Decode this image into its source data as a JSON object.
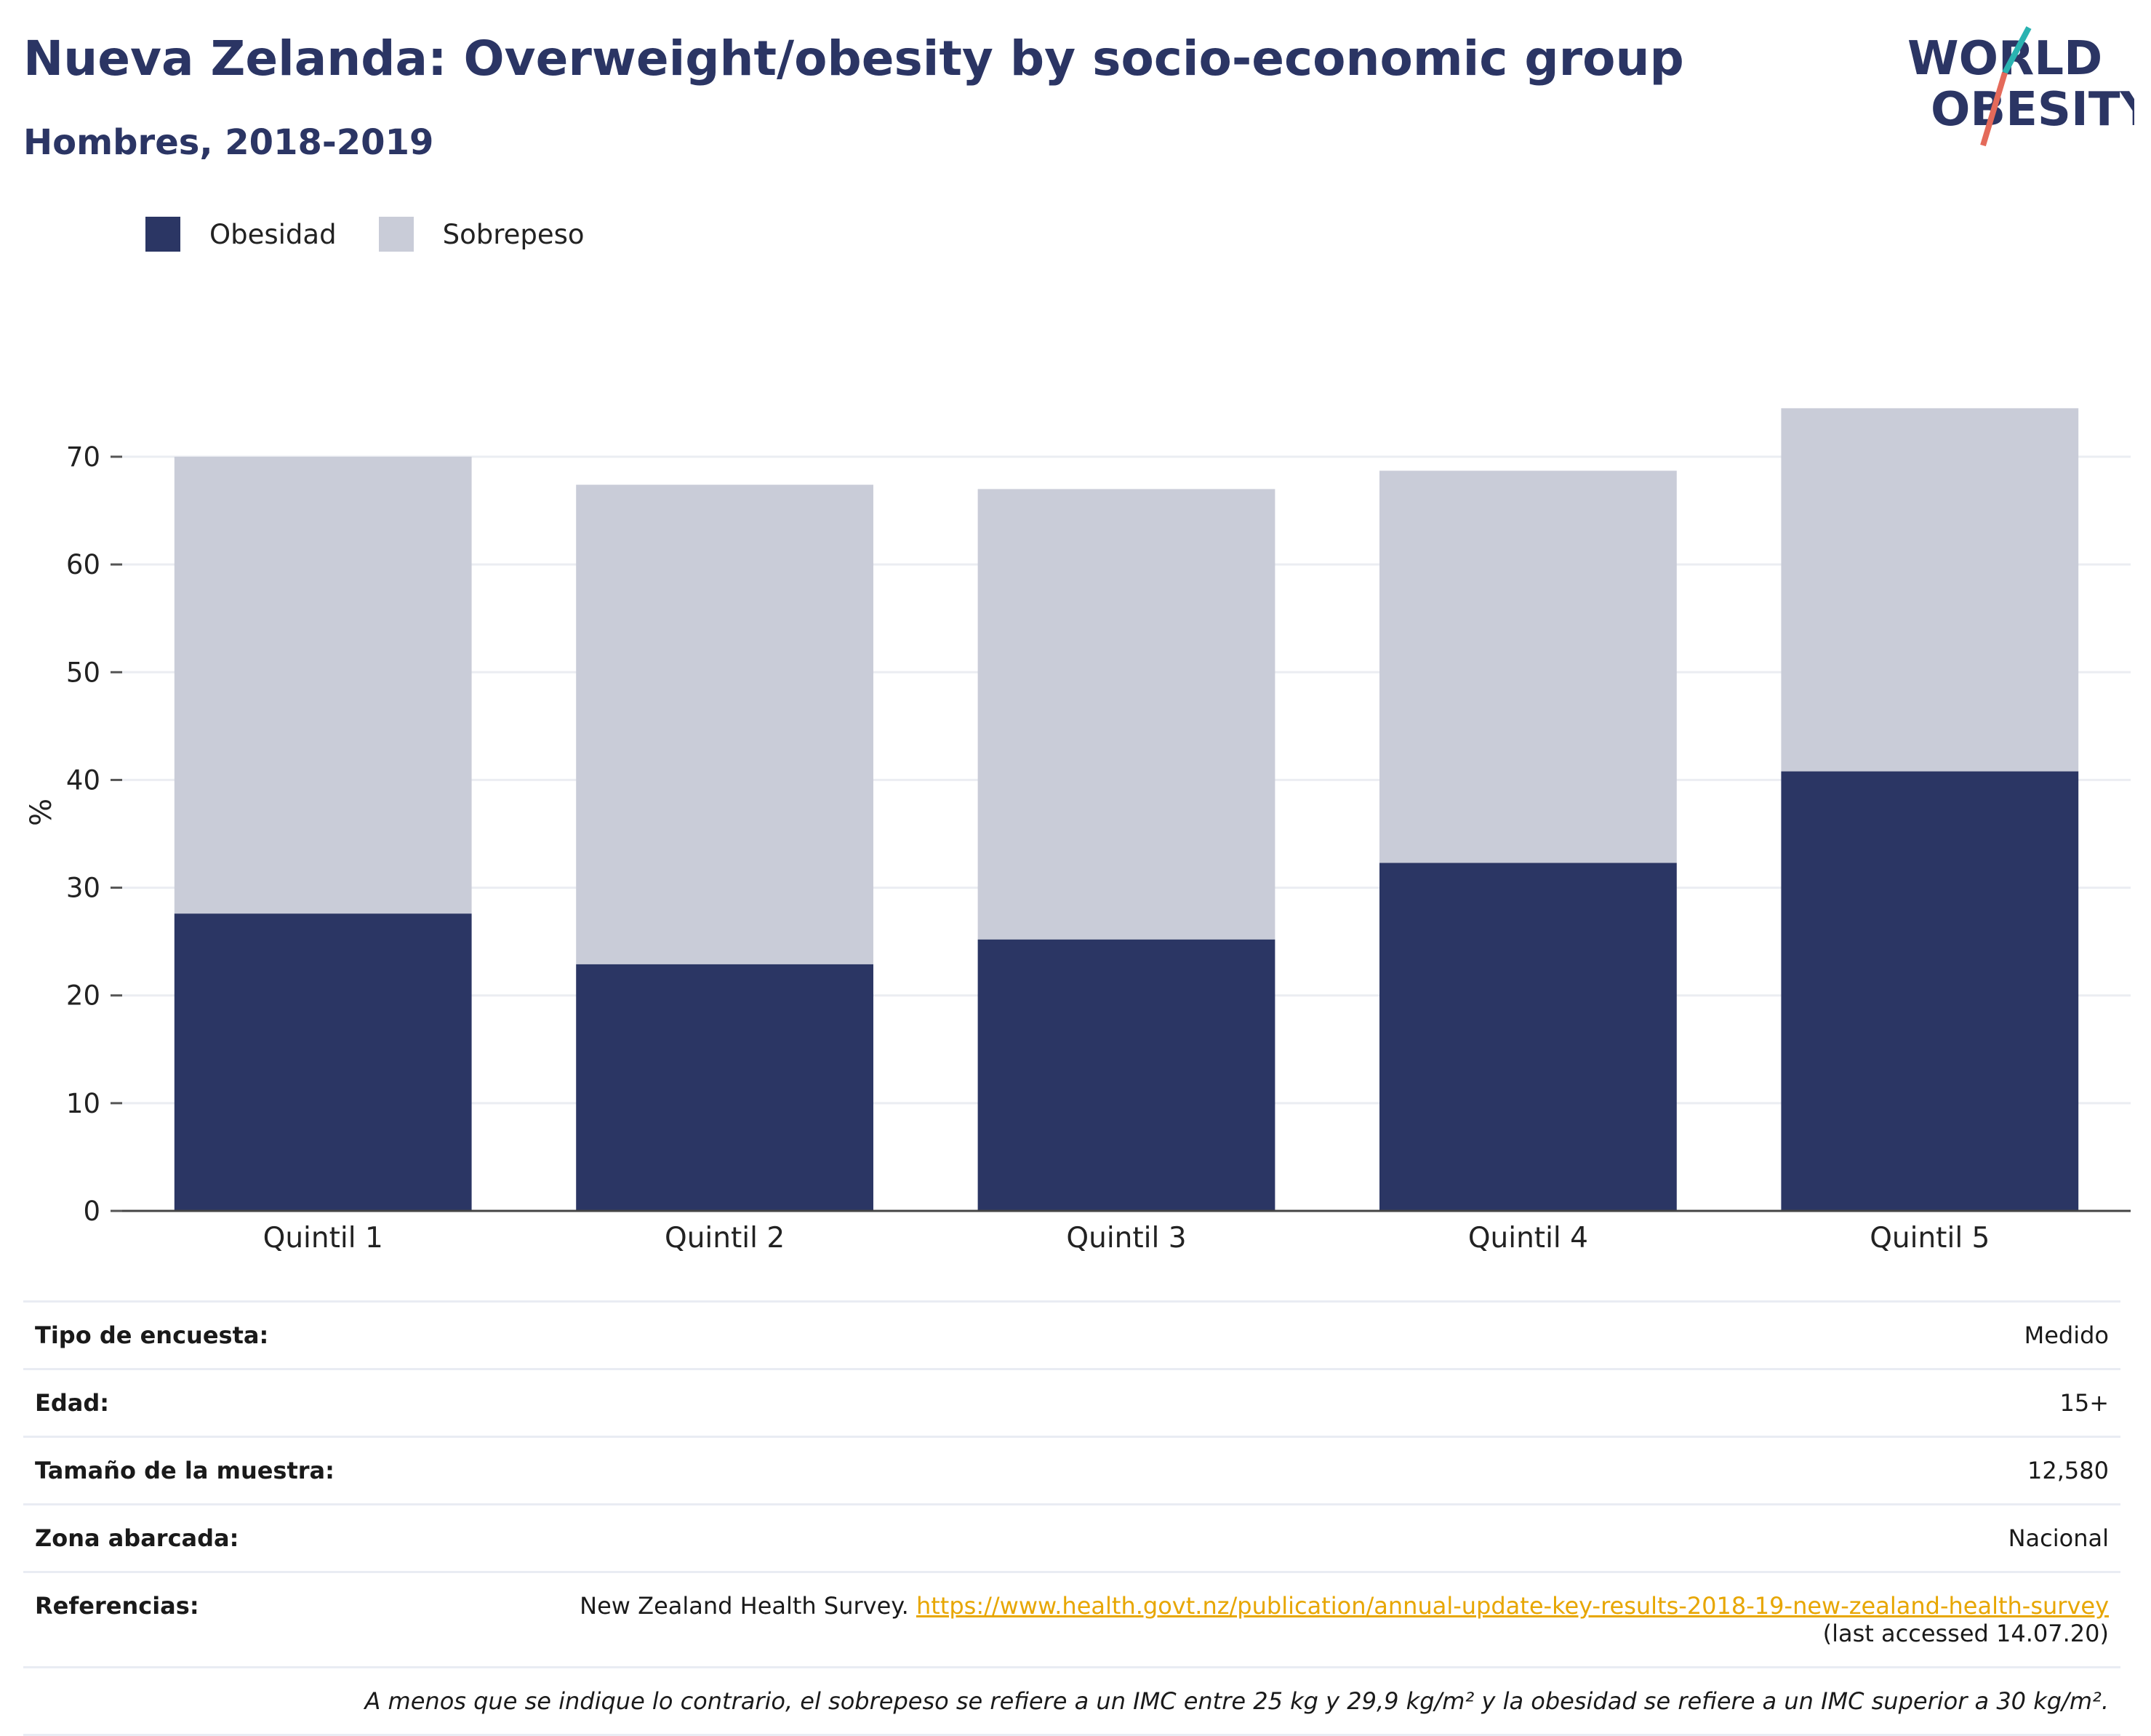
{
  "title": "Nueva Zelanda: Overweight/obesity by socio-economic group",
  "subtitle": "Hombres, 2018-2019",
  "logo": {
    "line1": "WORLD",
    "line2": "OBESITY"
  },
  "colors": {
    "obesity": "#2b3664",
    "overweight": "#c9ccd8",
    "title": "#2b3564",
    "link": "#e7a600"
  },
  "legend": [
    {
      "label": "Obesidad"
    },
    {
      "label": "Sobrepeso"
    }
  ],
  "chart_data": {
    "type": "bar",
    "stacked": true,
    "categories": [
      "Quintil 1",
      "Quintil 2",
      "Quintil 3",
      "Quintil 4",
      "Quintil 5"
    ],
    "series": [
      {
        "name": "Obesidad",
        "values": [
          27.6,
          22.9,
          25.2,
          32.3,
          40.8
        ]
      },
      {
        "name": "Sobrepeso",
        "values": [
          42.4,
          44.5,
          41.8,
          36.4,
          33.7
        ]
      }
    ],
    "ylabel": "%",
    "ylim": [
      0,
      78
    ],
    "yticks": [
      0,
      10,
      20,
      30,
      40,
      50,
      60,
      70
    ],
    "grid": true,
    "legend_position": "top-left"
  },
  "meta": {
    "survey_type": {
      "label": "Tipo de encuesta:",
      "value": "Medido"
    },
    "age": {
      "label": "Edad:",
      "value": "15+"
    },
    "sample": {
      "label": "Tamaño de la muestra:",
      "value": "12,580"
    },
    "area": {
      "label": "Zona abarcada:",
      "value": "Nacional"
    },
    "references": {
      "label": "Referencias:",
      "source": "New Zealand Health Survey.",
      "url": "https://www.health.govt.nz/publication/annual-update-key-results-2018-19-new-zealand-health-survey",
      "accessed": "(last accessed 14.07.20)"
    },
    "note": "A menos que se indique lo contrario, el sobrepeso se refiere a un IMC entre 25 kg y 29,9 kg/m² y la obesidad se refiere a un IMC superior a 30 kg/m²."
  }
}
